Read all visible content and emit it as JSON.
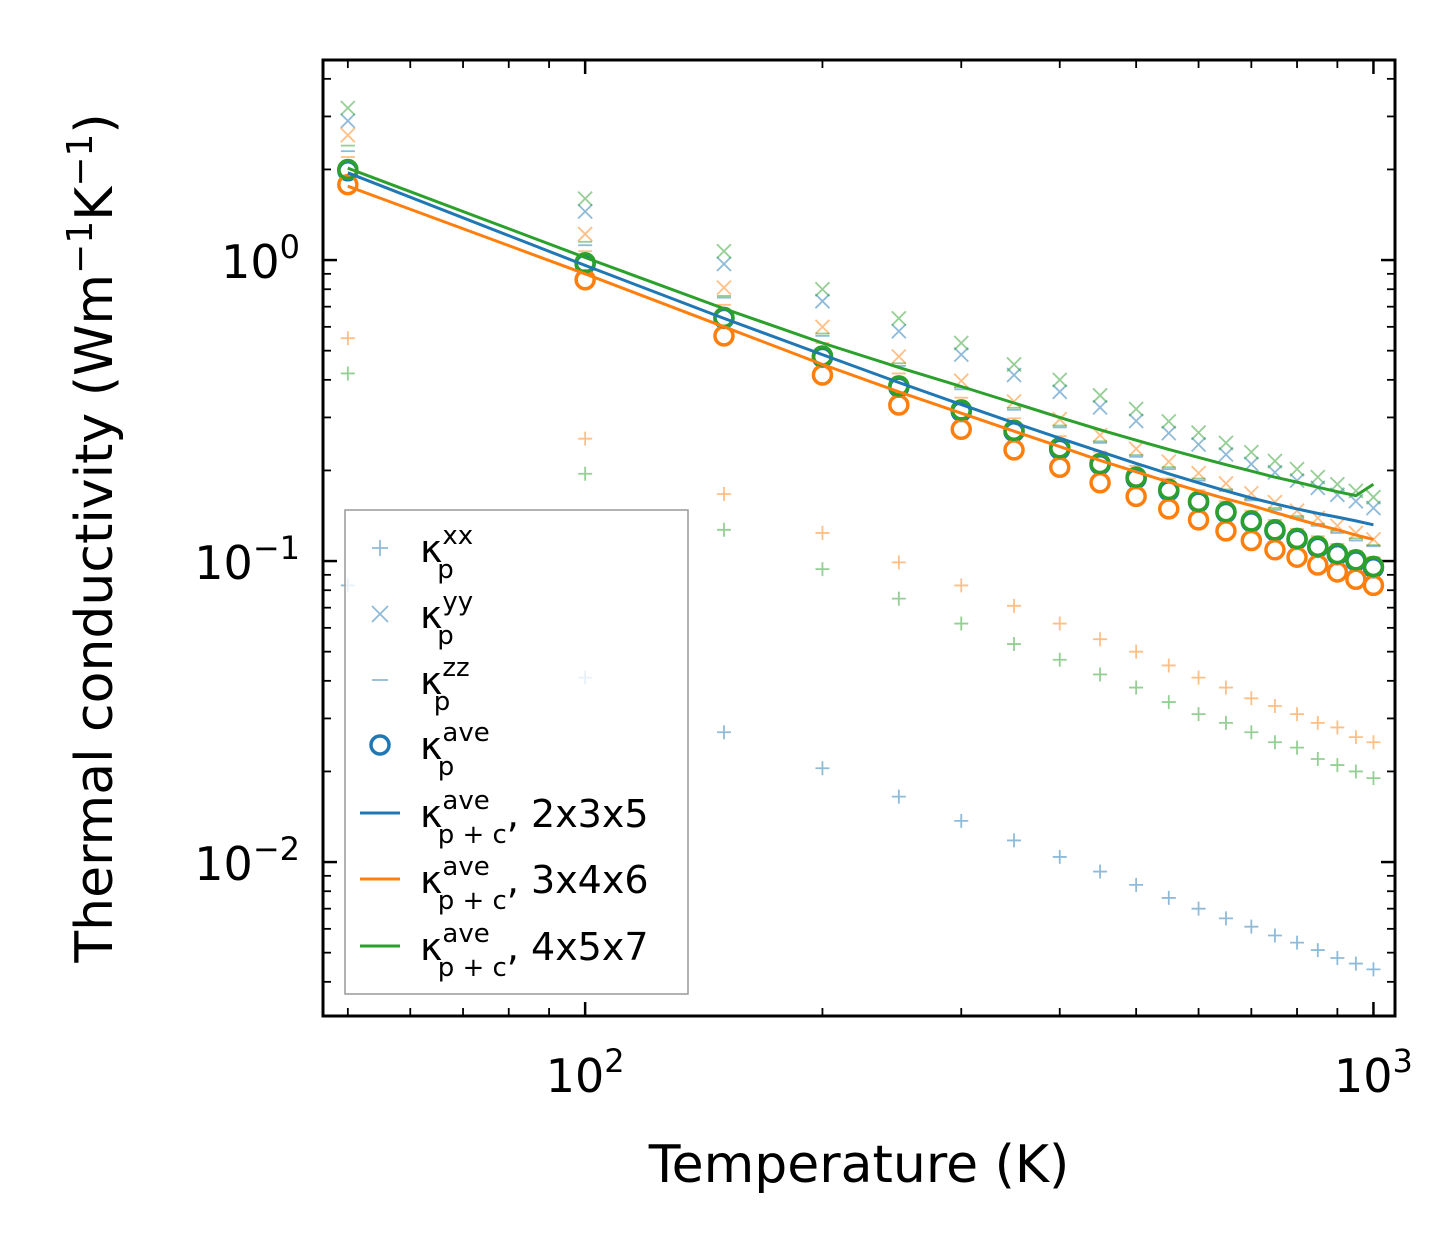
{
  "chart_data": {
    "type": "scatter",
    "xlabel": "Temperature (K)",
    "ylabel_base": "Thermal conductivity (Wm",
    "ylabel_sup1": "−1",
    "ylabel_mid": "K",
    "ylabel_sup2": "−1",
    "ylabel_end": ")",
    "xscale": "log",
    "yscale": "log",
    "xlim": [
      46.5,
      1065
    ],
    "ylim": [
      0.00308,
      4.62
    ],
    "x_ticks": [
      {
        "value": 100,
        "base": "10",
        "exp": "2"
      },
      {
        "value": 1000,
        "base": "10",
        "exp": "3"
      }
    ],
    "y_ticks": [
      {
        "value": 0.01,
        "base": "10",
        "exp": "−2"
      },
      {
        "value": 0.1,
        "base": "10",
        "exp": "−1"
      },
      {
        "value": 1,
        "base": "10",
        "exp": "0"
      }
    ],
    "legend_position": "lower-left",
    "legend": [
      {
        "marker": "plus",
        "color": "#1f77b4",
        "alpha": 0.5,
        "base": "κ",
        "sub": "p",
        "sup": "xx",
        "suffix": ""
      },
      {
        "marker": "x",
        "color": "#1f77b4",
        "alpha": 0.5,
        "base": "κ",
        "sub": "p",
        "sup": "yy",
        "suffix": ""
      },
      {
        "marker": "hline",
        "color": "#1f77b4",
        "alpha": 0.5,
        "base": "κ",
        "sub": "p",
        "sup": "zz",
        "suffix": ""
      },
      {
        "marker": "circle",
        "color": "#1f77b4",
        "alpha": 1,
        "base": "κ",
        "sub": "p",
        "sup": "ave",
        "suffix": ""
      },
      {
        "marker": "line",
        "color": "#1f77b4",
        "alpha": 1,
        "base": "κ",
        "sub": "p + c",
        "sup": "ave",
        "suffix": ", 2x3x5"
      },
      {
        "marker": "line",
        "color": "#ff7f0e",
        "alpha": 1,
        "base": "κ",
        "sub": "p + c",
        "sup": "ave",
        "suffix": ", 3x4x6"
      },
      {
        "marker": "line",
        "color": "#2ca02c",
        "alpha": 1,
        "base": "κ",
        "sub": "p + c",
        "sup": "ave",
        "suffix": ", 4x5x7"
      }
    ],
    "x": [
      50,
      100,
      150,
      200,
      250,
      300,
      350,
      400,
      450,
      500,
      550,
      600,
      650,
      700,
      750,
      800,
      850,
      900,
      950,
      1000
    ],
    "series": [
      {
        "name": "2x3x5",
        "color": "#1f77b4",
        "kappa_xx": [
          0.083,
          0.041,
          0.027,
          0.0205,
          0.0165,
          0.0137,
          0.0118,
          0.0104,
          0.0093,
          0.0084,
          0.0076,
          0.007,
          0.0065,
          0.0061,
          0.0057,
          0.0054,
          0.0051,
          0.0048,
          0.0046,
          0.0044
        ],
        "kappa_yy": [
          2.9,
          1.45,
          0.97,
          0.73,
          0.58,
          0.485,
          0.415,
          0.365,
          0.324,
          0.292,
          0.266,
          0.244,
          0.226,
          0.21,
          0.197,
          0.185,
          0.175,
          0.166,
          0.158,
          0.15
        ],
        "kappa_zz": [
          2.3,
          1.12,
          0.75,
          0.56,
          0.445,
          0.372,
          0.318,
          0.278,
          0.247,
          0.222,
          0.202,
          0.185,
          0.171,
          0.159,
          0.148,
          0.139,
          0.131,
          0.124,
          0.117,
          0.112
        ],
        "kappa_ave": [
          1.98,
          0.97,
          0.64,
          0.475,
          0.378,
          0.314,
          0.269,
          0.235,
          0.209,
          0.188,
          0.171,
          0.157,
          0.145,
          0.135,
          0.126,
          0.118,
          0.111,
          0.105,
          0.1,
          0.095
        ],
        "kappa_pc": [
          1.95,
          0.96,
          0.64,
          0.485,
          0.392,
          0.331,
          0.288,
          0.256,
          0.231,
          0.211,
          0.195,
          0.182,
          0.171,
          0.162,
          0.155,
          0.149,
          0.144,
          0.14,
          0.136,
          0.132
        ]
      },
      {
        "name": "3x4x6",
        "color": "#ff7f0e",
        "kappa_xx": [
          0.55,
          0.255,
          0.167,
          0.124,
          0.099,
          0.083,
          0.071,
          0.062,
          0.055,
          0.05,
          0.045,
          0.041,
          0.038,
          0.035,
          0.033,
          0.031,
          0.029,
          0.028,
          0.026,
          0.025
        ],
        "kappa_yy": [
          2.6,
          1.22,
          0.81,
          0.6,
          0.478,
          0.397,
          0.339,
          0.296,
          0.262,
          0.236,
          0.214,
          0.196,
          0.181,
          0.168,
          0.157,
          0.147,
          0.139,
          0.131,
          0.124,
          0.118
        ],
        "kappa_zz": [
          2.2,
          1.07,
          0.71,
          0.53,
          0.42,
          0.349,
          0.298,
          0.26,
          0.231,
          0.207,
          0.188,
          0.172,
          0.158,
          0.147,
          0.137,
          0.128,
          0.121,
          0.114,
          0.108,
          0.103
        ],
        "kappa_ave": [
          1.78,
          0.86,
          0.56,
          0.415,
          0.33,
          0.274,
          0.234,
          0.205,
          0.182,
          0.164,
          0.149,
          0.137,
          0.126,
          0.117,
          0.109,
          0.103,
          0.097,
          0.092,
          0.087,
          0.083
        ],
        "kappa_pc": [
          1.76,
          0.9,
          0.6,
          0.45,
          0.365,
          0.31,
          0.27,
          0.24,
          0.216,
          0.198,
          0.183,
          0.171,
          0.161,
          0.153,
          0.145,
          0.138,
          0.132,
          0.127,
          0.122,
          0.118
        ]
      },
      {
        "name": "4x5x7",
        "color": "#2ca02c",
        "kappa_xx": [
          0.42,
          0.195,
          0.127,
          0.094,
          0.075,
          0.062,
          0.053,
          0.047,
          0.042,
          0.038,
          0.034,
          0.031,
          0.029,
          0.027,
          0.025,
          0.024,
          0.022,
          0.021,
          0.02,
          0.019
        ],
        "kappa_yy": [
          3.2,
          1.6,
          1.07,
          0.8,
          0.64,
          0.53,
          0.45,
          0.4,
          0.355,
          0.32,
          0.291,
          0.267,
          0.247,
          0.23,
          0.215,
          0.202,
          0.19,
          0.18,
          0.171,
          0.163
        ],
        "kappa_zz": [
          2.4,
          1.15,
          0.76,
          0.57,
          0.454,
          0.378,
          0.323,
          0.282,
          0.25,
          0.225,
          0.205,
          0.188,
          0.173,
          0.161,
          0.15,
          0.141,
          0.133,
          0.126,
          0.119,
          0.113
        ],
        "kappa_ave": [
          2.0,
          0.98,
          0.645,
          0.48,
          0.382,
          0.318,
          0.272,
          0.238,
          0.211,
          0.19,
          0.173,
          0.158,
          0.146,
          0.136,
          0.127,
          0.119,
          0.112,
          0.106,
          0.101,
          0.096
        ],
        "kappa_pc": [
          2.02,
          1.02,
          0.69,
          0.53,
          0.44,
          0.38,
          0.335,
          0.3,
          0.273,
          0.252,
          0.235,
          0.221,
          0.209,
          0.199,
          0.19,
          0.183,
          0.176,
          0.17,
          0.165,
          0.18
        ]
      }
    ]
  }
}
